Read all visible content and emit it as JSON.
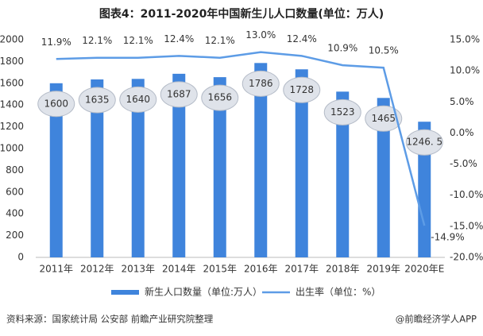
{
  "chart_data": {
    "type": "bar-line",
    "title": "图表4：2011-2020年中国新生儿人口数量(单位：万人)",
    "categories": [
      "2011年",
      "2012年",
      "2013年",
      "2014年",
      "2015年",
      "2016年",
      "2017年",
      "2018年",
      "2019年",
      "2020年E"
    ],
    "series": [
      {
        "name": "新生人口数量（单位:万人）",
        "color": "#3f84dc",
        "type": "bar",
        "values": [
          1600,
          1635,
          1640,
          1687,
          1656,
          1786,
          1728,
          1523,
          1465,
          1246.5
        ],
        "value_labels": [
          "1600",
          "1635",
          "1640",
          "1687",
          "1656",
          "1786",
          "1728",
          "1523",
          "1465",
          "1246. 5"
        ]
      },
      {
        "name": "出生率（单位：%）",
        "color": "#5d9ce6",
        "type": "line",
        "axis": "y2",
        "values": [
          11.9,
          12.1,
          12.1,
          12.4,
          12.1,
          13.0,
          12.4,
          10.9,
          10.5,
          -14.9
        ],
        "value_labels": [
          "11.9%",
          "12.1%",
          "12.1%",
          "12.4%",
          "12.1%",
          "13.0%",
          "12.4%",
          "10.9%",
          "10.5%",
          "-14.9%"
        ]
      }
    ],
    "ylim": [
      0,
      2000
    ],
    "yticks": [
      0,
      200,
      400,
      600,
      800,
      1000,
      1200,
      1400,
      1600,
      1800,
      2000
    ],
    "y2lim": [
      -20,
      15
    ],
    "y2ticks": [
      {
        "value": -20,
        "label": "-20.0%"
      },
      {
        "value": -15,
        "label": "-15.0%"
      },
      {
        "value": -10,
        "label": "-10.0%"
      },
      {
        "value": -5,
        "label": "-5.0%"
      },
      {
        "value": 0,
        "label": "0.0%"
      },
      {
        "value": 5,
        "label": "5.0%"
      },
      {
        "value": 10,
        "label": "10.0%"
      },
      {
        "value": 15,
        "label": "15.0%"
      }
    ],
    "source": "资料来源：国家统计局 公安部 前瞻产业研究院整理",
    "credit": "@前瞻经济学人APP"
  }
}
